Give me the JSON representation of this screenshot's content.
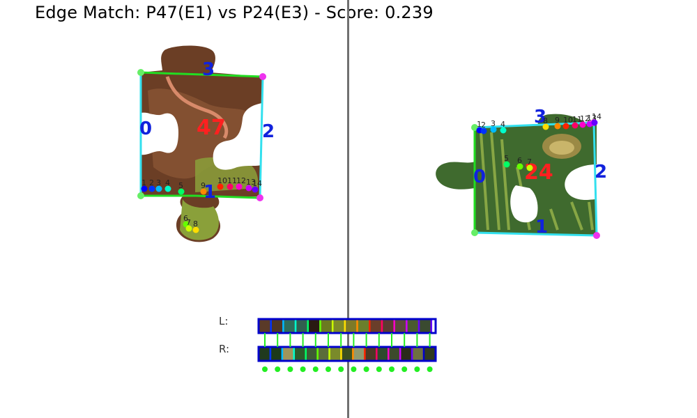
{
  "title": "Edge Match: P47(E1) vs P24(E3)  -  Score: 0.239",
  "pieces": {
    "left": {
      "id_label": "47",
      "corner_labels": [
        "0",
        "1",
        "2",
        "3"
      ],
      "point_labels": [
        "1",
        "2",
        "3",
        "4",
        "5",
        "6",
        "7",
        "8",
        "9",
        "10",
        "11",
        "12",
        "13",
        "14"
      ]
    },
    "right": {
      "id_label": "24",
      "corner_labels": [
        "0",
        "1",
        "2",
        "3"
      ],
      "point_labels": [
        "1",
        "2",
        "3",
        "4",
        "5",
        "6",
        "7",
        "8",
        "9",
        "10",
        "11",
        "12",
        "13",
        "14"
      ]
    }
  },
  "strips": {
    "left_label": "L:",
    "right_label": "R:",
    "left_colors": [
      "#5a3a28",
      "#4e3525",
      "#2f6c5a",
      "#315f4f",
      "#2a1a12",
      "#6b7a20",
      "#7e8a2a",
      "#7d7a28",
      "#6b7f2c",
      "#6a3e2a",
      "#5b3b31",
      "#5a4a3a",
      "#4a5a30",
      "#3a4a30"
    ],
    "right_colors": [
      "#203a1e",
      "#1c3a1a",
      "#a0955a",
      "#2d5a2a",
      "#3e5a35",
      "#5b6d3a",
      "#7a8a2a",
      "#3a5020",
      "#8f9a70",
      "#4a3a25",
      "#2e4a2c",
      "#3c4a2c",
      "#2a2a1a",
      "#6e7040",
      "#303a20"
    ],
    "frame_colors": [
      "#0000ff",
      "#0033ff",
      "#00bbff",
      "#00ffcc",
      "#00ff66",
      "#66ff00",
      "#ccff00",
      "#ffdd00",
      "#ff8800",
      "#ff2200",
      "#ff0066",
      "#ff00cc",
      "#cc00ff",
      "#6600ff",
      "#0000cc"
    ]
  },
  "colors": {
    "edge_cyan": "#33e0ee",
    "edge_green": "#22dd22",
    "corner_magenta": "#ee33ee",
    "corner_green": "#66ee66",
    "label_blue": "#1122dd",
    "id_red": "#ff2020",
    "match_dot": "#22ee22"
  }
}
